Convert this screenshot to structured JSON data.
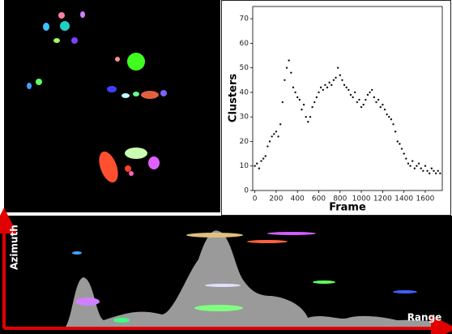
{
  "chart_data": {
    "type": "scatter",
    "x_label": "Frame",
    "y_label": "Clusters",
    "color": "#111111",
    "x": [
      0,
      20,
      40,
      60,
      80,
      100,
      120,
      140,
      160,
      180,
      200,
      220,
      240,
      260,
      280,
      300,
      320,
      340,
      360,
      380,
      400,
      420,
      440,
      460,
      480,
      500,
      520,
      540,
      560,
      580,
      600,
      620,
      640,
      660,
      680,
      700,
      720,
      740,
      760,
      780,
      800,
      820,
      840,
      860,
      880,
      900,
      920,
      940,
      960,
      980,
      1000,
      1020,
      1040,
      1060,
      1080,
      1100,
      1120,
      1140,
      1160,
      1180,
      1200,
      1220,
      1240,
      1260,
      1280,
      1300,
      1320,
      1340,
      1360,
      1380,
      1400,
      1420,
      1440,
      1460,
      1480,
      1500,
      1520,
      1540,
      1560,
      1580,
      1600,
      1620,
      1640,
      1660,
      1680,
      1700,
      1720,
      1740
    ],
    "values": [
      10,
      11,
      9,
      12,
      13,
      14,
      18,
      20,
      22,
      23,
      24,
      22,
      27,
      36,
      45,
      50,
      53,
      48,
      42,
      40,
      38,
      37,
      33,
      35,
      30,
      28,
      30,
      34,
      36,
      38,
      40,
      42,
      41,
      43,
      42,
      44,
      43,
      45,
      46,
      50,
      47,
      45,
      43,
      42,
      41,
      39,
      38,
      40,
      36,
      37,
      34,
      35,
      37,
      39,
      40,
      41,
      38,
      36,
      37,
      34,
      35,
      33,
      31,
      30,
      29,
      27,
      24,
      20,
      19,
      17,
      15,
      13,
      11,
      10,
      12,
      9,
      10,
      11,
      9,
      8,
      10,
      8,
      7,
      9,
      8,
      7,
      8,
      7
    ],
    "xlim": [
      -20,
      1760
    ],
    "ylim": [
      0,
      75
    ],
    "xticks": [
      0,
      200,
      400,
      600,
      800,
      1000,
      1200,
      1400,
      1600
    ],
    "yticks": [
      0,
      10,
      20,
      30,
      40,
      50,
      60,
      70
    ]
  },
  "range_map": {
    "azimuth_label": "Azimuth",
    "range_label": "Range"
  }
}
